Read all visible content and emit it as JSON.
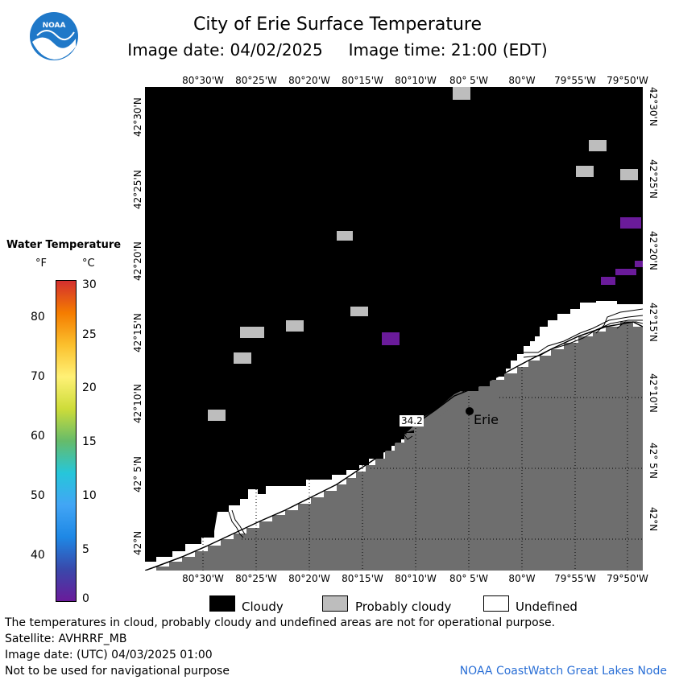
{
  "header": {
    "title": "City of Erie Surface Temperature",
    "date_label": "Image date: 04/02/2025",
    "time_label": "Image time: 21:00 (EDT)"
  },
  "map": {
    "lon_labels": [
      "80°30'W",
      "80°25'W",
      "80°20'W",
      "80°15'W",
      "80°10'W",
      "80° 5'W",
      "80°W",
      "79°55'W",
      "79°50'W"
    ],
    "lat_labels": [
      "42°30'N",
      "42°25'N",
      "42°20'N",
      "42°15'N",
      "42°10'N",
      "42° 5'N",
      "42°N"
    ],
    "city_label": "Erie",
    "contour_label": "34.2",
    "colors": {
      "cloud": "#000000",
      "probably_cloudy": "#bdbdbd",
      "land": "#6e6e6e",
      "undefined": "#ffffff",
      "cold_water": "#6a1b9a"
    }
  },
  "legend": {
    "title": "Water Temperature",
    "unit_f": "°F",
    "unit_c": "°C",
    "f_ticks": [
      "80",
      "70",
      "60",
      "50",
      "40"
    ],
    "c_ticks": [
      "30",
      "25",
      "20",
      "15",
      "10",
      "5",
      "0"
    ],
    "colors": [
      "#d32f2f",
      "#f57c00",
      "#fbc02d",
      "#fff176",
      "#cddc39",
      "#66bb6a",
      "#26c6da",
      "#42a5f5",
      "#1e88e5",
      "#3949ab",
      "#6a1b9a"
    ]
  },
  "key": {
    "cloudy": "Cloudy",
    "probably_cloudy": "Probably cloudy",
    "undefined": "Undefined"
  },
  "footer": {
    "note": "The temperatures in cloud, probably cloudy and undefined areas are not for operational purpose.",
    "satellite": "Satellite: AVHRRF_MB",
    "utc_date": "Image date: (UTC) 04/03/2025  01:00",
    "navigation": "Not to be used for navigational purpose",
    "credit": "NOAA CoastWatch Great Lakes Node"
  }
}
